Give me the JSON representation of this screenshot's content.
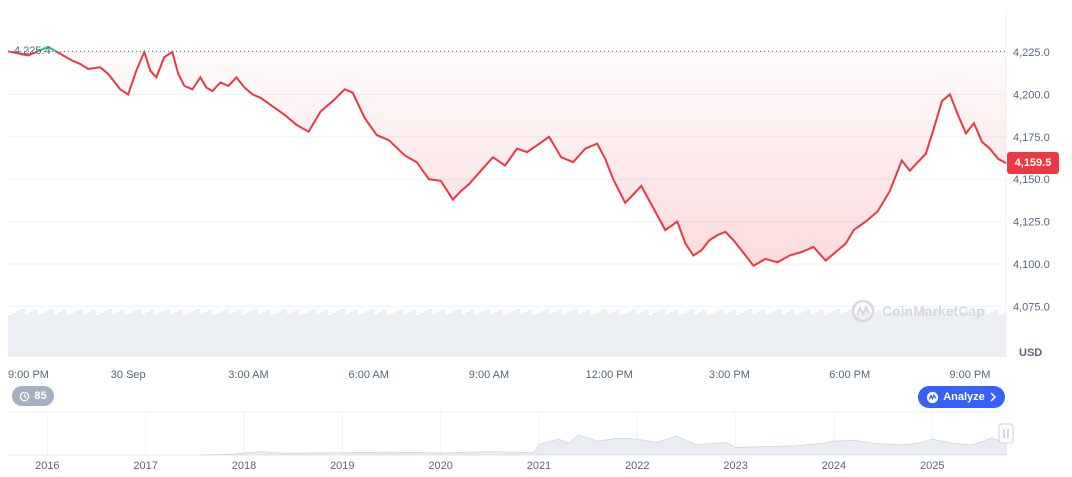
{
  "chart_data": [
    {
      "type": "line",
      "currency": "USD",
      "open_price_label": "4,225.4",
      "current_price_label": "4,159.5",
      "reference_price": 4225.4,
      "current_price": 4159.5,
      "ylim": [
        4065,
        4260
      ],
      "y_ticks": [
        4225.0,
        4200.0,
        4175.0,
        4150.0,
        4125.0,
        4100.0,
        4075.0
      ],
      "y_tick_labels": [
        "4,225.0",
        "4,200.0",
        "4,175.0",
        "4,150.0",
        "4,125.0",
        "4,100.0",
        "4,075.0"
      ],
      "x_tick_labels": [
        "9:00 PM",
        "30 Sep",
        "3:00 AM",
        "6:00 AM",
        "9:00 AM",
        "12:00 PM",
        "3:00 PM",
        "6:00 PM",
        "9:00 PM"
      ],
      "x_tick_hours": [
        0,
        3,
        6,
        9,
        12,
        15,
        18,
        21,
        24
      ],
      "x_range_hours": [
        0,
        24.9
      ],
      "series": [
        {
          "x": [
            0.0,
            0.5,
            1.0,
            1.3,
            1.6,
            1.8,
            2.0,
            2.3,
            2.5,
            2.8,
            3.0,
            3.2,
            3.4,
            3.55,
            3.7,
            3.9,
            4.1,
            4.25,
            4.4,
            4.6,
            4.8,
            4.95,
            5.1,
            5.3,
            5.5,
            5.7,
            5.9,
            6.1,
            6.3,
            6.6,
            6.9,
            7.2,
            7.5,
            7.8,
            8.1,
            8.4,
            8.6,
            8.9,
            9.2,
            9.5,
            9.9,
            10.2,
            10.5,
            10.8,
            11.1,
            11.3,
            11.5,
            11.8,
            12.1,
            12.4,
            12.7,
            12.95,
            13.2,
            13.5,
            13.8,
            14.1,
            14.4,
            14.7,
            14.9,
            15.1,
            15.4,
            15.6,
            15.8,
            16.1,
            16.4,
            16.7,
            16.9,
            17.1,
            17.3,
            17.5,
            17.7,
            17.9,
            18.1,
            18.3,
            18.6,
            18.9,
            19.2,
            19.5,
            19.8,
            20.1,
            20.4,
            20.7,
            20.9,
            21.1,
            21.4,
            21.7,
            22.0,
            22.3,
            22.5,
            22.7,
            22.9,
            23.1,
            23.3,
            23.5,
            23.7,
            23.9,
            24.1,
            24.3,
            24.5,
            24.7,
            24.9
          ],
          "y": [
            4225.4,
            4223,
            4228,
            4224,
            4220,
            4218,
            4215,
            4216,
            4212,
            4203,
            4200,
            4214,
            4225,
            4214,
            4210,
            4222,
            4225,
            4212,
            4205,
            4203,
            4210,
            4204,
            4202,
            4207,
            4205,
            4210,
            4204,
            4200,
            4198,
            4193,
            4188,
            4182,
            4178,
            4190,
            4196,
            4203,
            4201,
            4186,
            4176,
            4173,
            4164,
            4160,
            4150,
            4149,
            4138,
            4143,
            4147,
            4155,
            4163,
            4158,
            4168,
            4166,
            4170,
            4175,
            4163,
            4160,
            4168,
            4171,
            4162,
            4150,
            4136,
            4141,
            4146,
            4133,
            4120,
            4125,
            4112,
            4105,
            4108,
            4114,
            4117,
            4119,
            4114,
            4108,
            4099,
            4103,
            4101,
            4105,
            4107,
            4110,
            4102,
            4108,
            4112,
            4120,
            4125,
            4131,
            4143,
            4161,
            4155,
            4160,
            4165,
            4180,
            4196,
            4200,
            4188,
            4177,
            4183,
            4172,
            4168,
            4162,
            4159.5
          ]
        }
      ]
    },
    {
      "type": "area",
      "x_tick_labels": [
        "2016",
        "2017",
        "2018",
        "2019",
        "2020",
        "2021",
        "2022",
        "2023",
        "2024",
        "2025"
      ],
      "x_tick_years": [
        2016,
        2017,
        2018,
        2019,
        2020,
        2021,
        2022,
        2023,
        2024,
        2025
      ],
      "x_range_years": [
        2015.6,
        2025.75
      ],
      "ylim": [
        0,
        1
      ],
      "series": [
        {
          "x": [
            2015.6,
            2016.5,
            2017.5,
            2017.9,
            2018.0,
            2018.2,
            2018.4,
            2018.7,
            2019.0,
            2019.5,
            2020.0,
            2020.5,
            2020.95,
            2021.0,
            2021.2,
            2021.3,
            2021.4,
            2021.6,
            2021.8,
            2022.0,
            2022.2,
            2022.4,
            2022.6,
            2022.9,
            2023.0,
            2023.3,
            2023.6,
            2023.9,
            2024.0,
            2024.2,
            2024.4,
            2024.7,
            2024.9,
            2025.0,
            2025.2,
            2025.4,
            2025.6,
            2025.75
          ],
          "y": [
            0.0,
            0.0,
            0.0,
            0.02,
            0.05,
            0.08,
            0.04,
            0.05,
            0.06,
            0.07,
            0.05,
            0.08,
            0.06,
            0.25,
            0.38,
            0.28,
            0.48,
            0.33,
            0.4,
            0.38,
            0.3,
            0.45,
            0.25,
            0.3,
            0.18,
            0.2,
            0.22,
            0.28,
            0.33,
            0.35,
            0.28,
            0.24,
            0.3,
            0.38,
            0.28,
            0.24,
            0.4,
            0.3
          ]
        }
      ]
    }
  ],
  "badges": {
    "history_count": "85",
    "analyze_label": "Analyze"
  },
  "watermark": "CoinMarketCap",
  "axis_unit": "USD",
  "colors": {
    "down": "#ea3943",
    "up": "#16c784",
    "accent": "#3861fb",
    "grid": "#eff2f5",
    "text": "#58667e"
  },
  "icons": {
    "history": "history-icon",
    "analyze": "cmc-logo-icon",
    "chevron": "chevron-right-icon",
    "handle": "pause-handle-icon"
  }
}
